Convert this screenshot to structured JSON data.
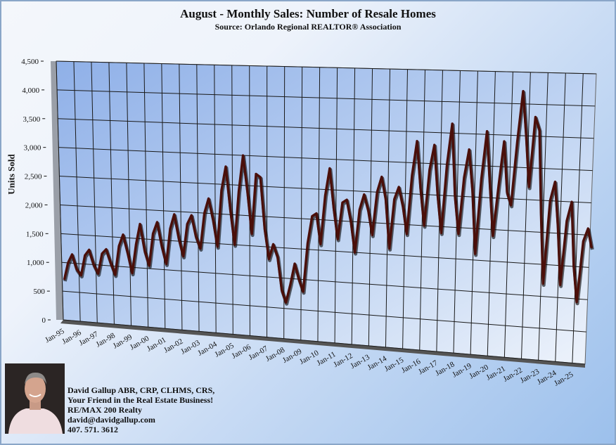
{
  "chart_data": {
    "type": "line",
    "title": "August - Monthly Sales: Number of  Resale Homes",
    "subtitle": "Source: Orlando Regional REALTOR® Association",
    "xlabel": "",
    "ylabel": "Units Sold",
    "ylim": [
      0,
      4500
    ],
    "yticks": [
      "0",
      "500",
      "1,000",
      "1,500",
      "2,000",
      "2,500",
      "3,000",
      "3,500",
      "4,000",
      "4,500"
    ],
    "xticks": [
      "Jan-95",
      "Jan-96",
      "Jan-97",
      "Jan-98",
      "Jan-99",
      "Jan-00",
      "Jan-01",
      "Jan-02",
      "Jan-03",
      "Jan-04",
      "Jan-05",
      "Jan-06",
      "Jan-07",
      "Jan-08",
      "Jan-09",
      "Jan-10",
      "Jan-11",
      "Jan-12",
      "Jan-13",
      "Jan-14",
      "Jan-15",
      "Jan-16",
      "Jan-17",
      "Jan-18",
      "Jan-19",
      "Jan-20",
      "Jan-21",
      "Jan-22",
      "Jan-23",
      "Jan-24",
      "Jan-25"
    ],
    "grid": true,
    "series": [
      {
        "name": "Units Sold",
        "color": "#4a0f0a",
        "start_year": 1995,
        "step_years": 0.25,
        "values": [
          700,
          1000,
          1150,
          900,
          800,
          1150,
          1250,
          1000,
          850,
          1200,
          1280,
          1050,
          850,
          1350,
          1550,
          1250,
          900,
          1400,
          1750,
          1300,
          1050,
          1600,
          1800,
          1400,
          1100,
          1700,
          1950,
          1550,
          1250,
          1800,
          1950,
          1600,
          1400,
          2000,
          2250,
          1900,
          1450,
          2400,
          2800,
          2100,
          1500,
          2400,
          3000,
          2400,
          1700,
          2700,
          2650,
          1800,
          1300,
          1550,
          1350,
          800,
          600,
          900,
          1250,
          1000,
          800,
          1600,
          2050,
          2100,
          1600,
          2400,
          2850,
          2200,
          1700,
          2300,
          2350,
          2000,
          1500,
          2200,
          2450,
          2200,
          1800,
          2500,
          2750,
          2400,
          1600,
          2400,
          2600,
          2300,
          1850,
          2800,
          3350,
          2600,
          2000,
          2900,
          3300,
          2500,
          1900,
          3000,
          3650,
          2500,
          1900,
          2800,
          3250,
          2600,
          1600,
          2800,
          3550,
          2700,
          1900,
          2700,
          3400,
          2600,
          2400,
          3400,
          4200,
          3500,
          2700,
          3800,
          3600,
          2300,
          1200,
          2500,
          2800,
          2100,
          1200,
          2200,
          2500,
          1500,
          950,
          1900,
          2100,
          1800
        ]
      }
    ]
  },
  "agent": {
    "line1": "David Gallup  ABR, CRP, CLHMS, CRS,",
    "line2": "Your Friend in the Real Estate Business!",
    "line3": "RE/MAX 200 Realty",
    "line4": "david@davidgallup.com",
    "line5": "407. 571. 3612"
  }
}
